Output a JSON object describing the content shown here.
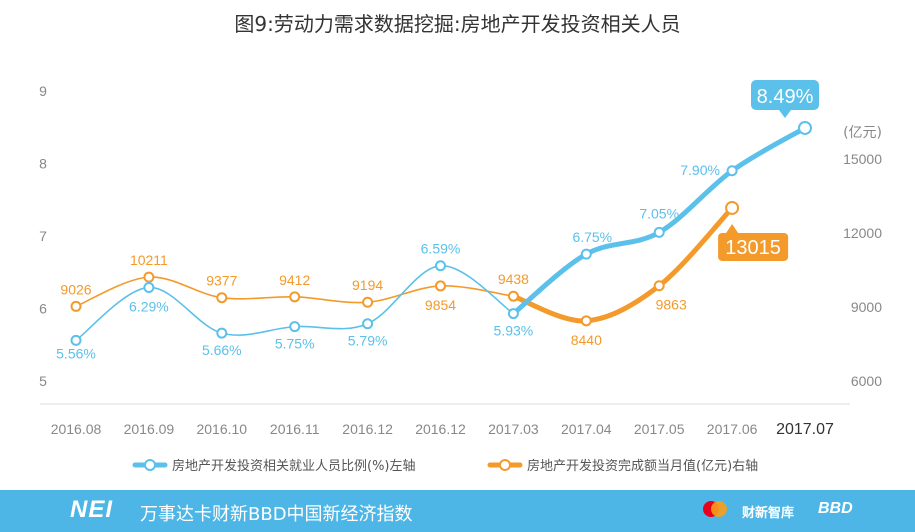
{
  "footer": {
    "brand": "NEI",
    "text": "万事达卡财新BBD中国新经济指数",
    "logo_caixin": "财新智库",
    "logo_bbd": "BBD"
  },
  "colors": {
    "blue": "#5bc0ea",
    "orange": "#f39a2b",
    "axis_text": "#888888",
    "footer_bg": "#4db6e6"
  },
  "chart_data": {
    "type": "line",
    "title": "图9:劳动力需求数据挖掘:房地产开发投资相关人员",
    "categories": [
      "2016.08",
      "2016.09",
      "2016.10",
      "2016.11",
      "2016.12",
      "2016.12",
      "2017.03",
      "2017.04",
      "2017.05",
      "2017.06",
      "2017.07"
    ],
    "y_left": {
      "min": 5,
      "max": 9,
      "ticks": [
        "5",
        "6",
        "7",
        "8",
        "9"
      ]
    },
    "y_right": {
      "min": 6000,
      "max": 15000,
      "ticks": [
        "6000",
        "9000",
        "12000",
        "15000"
      ],
      "unit": "(亿元)"
    },
    "series": [
      {
        "name": "房地产开发投资相关就业人员比例(%)左轴",
        "axis": "left",
        "color": "#5bc0ea",
        "values": [
          5.56,
          6.29,
          5.66,
          5.75,
          5.79,
          6.59,
          5.93,
          6.75,
          7.05,
          7.9,
          8.49
        ],
        "labels": [
          "5.56%",
          "6.29%",
          "5.66%",
          "5.75%",
          "5.79%",
          "6.59%",
          "5.93%",
          "6.75%",
          "7.05%",
          "7.90%",
          "8.49%"
        ]
      },
      {
        "name": "房地产开发投资完成额当月值(亿元)右轴",
        "axis": "right",
        "color": "#f39a2b",
        "values": [
          9026,
          10211,
          9377,
          9412,
          9194,
          9854,
          9438,
          8440,
          9863,
          13015,
          null
        ],
        "labels": [
          "9026",
          "10211",
          "9377",
          "9412",
          "9194",
          "9854",
          "9438",
          "8440",
          "9863",
          "13015",
          ""
        ]
      }
    ]
  }
}
